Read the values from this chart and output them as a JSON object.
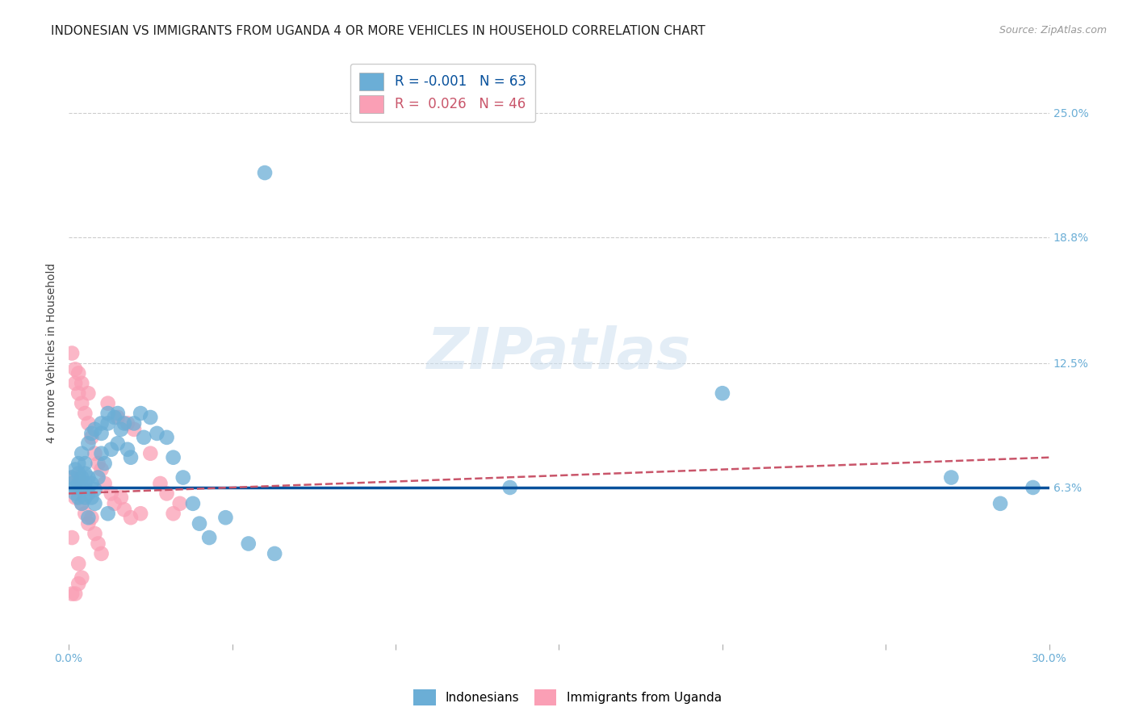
{
  "title": "INDONESIAN VS IMMIGRANTS FROM UGANDA 4 OR MORE VEHICLES IN HOUSEHOLD CORRELATION CHART",
  "source": "Source: ZipAtlas.com",
  "ylabel": "4 or more Vehicles in Household",
  "xlim": [
    0.0,
    0.3
  ],
  "ylim": [
    -0.015,
    0.275
  ],
  "xtick_positions": [
    0.0,
    0.05,
    0.1,
    0.15,
    0.2,
    0.25,
    0.3
  ],
  "xticklabels": [
    "0.0%",
    "",
    "",
    "",
    "",
    "",
    "30.0%"
  ],
  "ytick_positions": [
    0.063,
    0.125,
    0.188,
    0.25
  ],
  "ytick_labels": [
    "6.3%",
    "12.5%",
    "18.8%",
    "25.0%"
  ],
  "watermark": "ZIPatlas",
  "blue_color": "#6baed6",
  "pink_color": "#fa9fb5",
  "trend_blue_color": "#08519c",
  "trend_pink_color": "#c9556a",
  "background_color": "#ffffff",
  "grid_color": "#cccccc",
  "title_fontsize": 11,
  "axis_label_fontsize": 10,
  "tick_fontsize": 10,
  "source_fontsize": 9,
  "watermark_fontsize": 52,
  "indonesian_x": [
    0.001,
    0.001,
    0.002,
    0.002,
    0.002,
    0.003,
    0.003,
    0.003,
    0.003,
    0.004,
    0.004,
    0.004,
    0.004,
    0.005,
    0.005,
    0.005,
    0.005,
    0.006,
    0.006,
    0.006,
    0.007,
    0.007,
    0.007,
    0.008,
    0.008,
    0.009,
    0.01,
    0.01,
    0.01,
    0.011,
    0.012,
    0.012,
    0.013,
    0.014,
    0.015,
    0.015,
    0.016,
    0.017,
    0.018,
    0.019,
    0.02,
    0.022,
    0.023,
    0.025,
    0.027,
    0.03,
    0.032,
    0.035,
    0.038,
    0.04,
    0.043,
    0.048,
    0.055,
    0.063,
    0.135,
    0.2,
    0.27,
    0.285,
    0.295,
    0.006,
    0.008,
    0.012,
    0.06
  ],
  "indonesian_y": [
    0.065,
    0.068,
    0.06,
    0.063,
    0.072,
    0.058,
    0.065,
    0.07,
    0.075,
    0.055,
    0.063,
    0.068,
    0.08,
    0.058,
    0.065,
    0.07,
    0.075,
    0.06,
    0.068,
    0.085,
    0.058,
    0.065,
    0.09,
    0.062,
    0.092,
    0.068,
    0.08,
    0.09,
    0.095,
    0.075,
    0.095,
    0.1,
    0.082,
    0.098,
    0.085,
    0.1,
    0.092,
    0.095,
    0.082,
    0.078,
    0.095,
    0.1,
    0.088,
    0.098,
    0.09,
    0.088,
    0.078,
    0.068,
    0.055,
    0.045,
    0.038,
    0.048,
    0.035,
    0.03,
    0.063,
    0.11,
    0.068,
    0.055,
    0.063,
    0.048,
    0.055,
    0.05,
    0.22
  ],
  "uganda_x": [
    0.001,
    0.001,
    0.001,
    0.002,
    0.002,
    0.002,
    0.003,
    0.003,
    0.003,
    0.003,
    0.004,
    0.004,
    0.004,
    0.005,
    0.005,
    0.006,
    0.006,
    0.006,
    0.007,
    0.007,
    0.008,
    0.008,
    0.009,
    0.009,
    0.01,
    0.01,
    0.011,
    0.012,
    0.013,
    0.014,
    0.015,
    0.016,
    0.017,
    0.018,
    0.019,
    0.02,
    0.022,
    0.025,
    0.028,
    0.03,
    0.032,
    0.034,
    0.001,
    0.002,
    0.003,
    0.004
  ],
  "uganda_y": [
    0.13,
    0.068,
    0.038,
    0.122,
    0.115,
    0.058,
    0.12,
    0.11,
    0.068,
    0.025,
    0.115,
    0.105,
    0.055,
    0.1,
    0.05,
    0.11,
    0.095,
    0.045,
    0.088,
    0.048,
    0.08,
    0.04,
    0.075,
    0.035,
    0.072,
    0.03,
    0.065,
    0.105,
    0.06,
    0.055,
    0.098,
    0.058,
    0.052,
    0.095,
    0.048,
    0.092,
    0.05,
    0.08,
    0.065,
    0.06,
    0.05,
    0.055,
    0.01,
    0.01,
    0.015,
    0.018
  ],
  "legend_blue_text": "R = -0.001   N = 63",
  "legend_pink_text": "R =  0.026   N = 46",
  "legend_blue_text_color": "#08519c",
  "legend_pink_text_color": "#c9556a"
}
